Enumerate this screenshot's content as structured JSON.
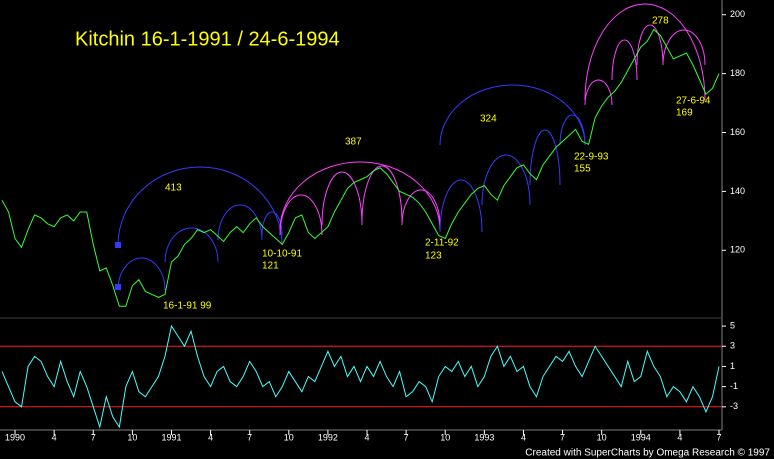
{
  "chart_data": [
    {
      "type": "line",
      "title": "Kitchin  16-1-1991 / 24-6-1994",
      "categories": [
        null,
        null,
        "1990",
        null,
        null,
        null,
        null,
        null,
        "4",
        null,
        null,
        null,
        null,
        null,
        "7",
        null,
        null,
        null,
        null,
        null,
        "10",
        null,
        null,
        null,
        null,
        null,
        "1991",
        null,
        null,
        null,
        null,
        null,
        "4",
        null,
        null,
        null,
        null,
        null,
        "7",
        null,
        null,
        null,
        null,
        null,
        "10",
        null,
        null,
        null,
        null,
        null,
        "1992",
        null,
        null,
        null,
        null,
        null,
        "4",
        null,
        null,
        null,
        null,
        null,
        "7",
        null,
        null,
        null,
        null,
        null,
        "10",
        null,
        null,
        null,
        null,
        null,
        "1993",
        null,
        null,
        null,
        null,
        null,
        "4",
        null,
        null,
        null,
        null,
        null,
        "7",
        null,
        null,
        null,
        null,
        null,
        "10",
        null,
        null,
        null,
        null,
        null,
        "1994",
        null,
        null,
        null,
        null,
        null,
        "4",
        null,
        null,
        null,
        null,
        null,
        "7"
      ],
      "values": [
        137,
        133,
        124,
        121,
        127,
        132,
        131,
        129,
        128,
        131,
        132,
        130,
        133,
        133,
        122,
        113,
        114,
        108,
        101,
        101,
        108,
        110,
        106,
        105,
        104,
        105,
        116,
        118,
        122,
        124,
        127,
        126,
        127,
        125,
        123,
        126,
        128,
        126,
        129,
        131,
        128,
        126,
        124,
        122,
        126,
        131,
        132,
        126,
        124,
        126,
        128,
        133,
        137,
        141,
        143,
        144,
        145,
        147,
        148,
        146,
        143,
        140,
        139,
        138,
        136,
        133,
        129,
        125,
        124,
        129,
        133,
        136,
        139,
        141,
        142,
        139,
        137,
        142,
        145,
        148,
        149,
        146,
        144,
        149,
        152,
        155,
        157,
        159,
        161,
        157,
        156,
        165,
        169,
        172,
        174,
        177,
        181,
        185,
        189,
        191,
        195,
        193,
        189,
        185,
        186,
        187,
        183,
        178,
        173,
        175,
        180
      ],
      "color": "#33ff33",
      "ylim": [
        97,
        205
      ],
      "yticks": [
        120,
        140,
        160,
        180,
        200
      ],
      "annotations": [
        "413",
        "387",
        "324",
        "278",
        "16-1-91   99",
        "10-10-91",
        "121",
        "2-11-92",
        "123",
        "22-9-93",
        "155",
        "27-6-94",
        "169"
      ],
      "credit": "Created with SuperCharts by Omega Research © 1997"
    },
    {
      "type": "line",
      "values": [
        0.5,
        -1,
        -2.5,
        -3,
        1,
        2,
        1.5,
        0,
        -1,
        1.5,
        -0.5,
        -2,
        0.5,
        -1,
        -3,
        -5,
        -2,
        -4,
        -5,
        -1,
        0.5,
        -1.5,
        -2,
        -1,
        0,
        2,
        5,
        4,
        3,
        4.5,
        2,
        0,
        -1,
        0.5,
        1,
        -0.5,
        -1,
        0,
        1.5,
        0.5,
        -1,
        -0.5,
        -2,
        -1,
        0.5,
        -0.5,
        -1.5,
        0,
        -0.5,
        1,
        2.5,
        1,
        2,
        0,
        1,
        -0.5,
        1,
        0,
        1.5,
        0,
        -1,
        0.5,
        -2,
        -1.5,
        -0.5,
        -1,
        -2.5,
        0,
        1,
        0.5,
        1.5,
        0,
        1,
        -1,
        0,
        2,
        3,
        1,
        2,
        0.5,
        1,
        -1,
        -2,
        0,
        1,
        2,
        1.5,
        2.5,
        1,
        0,
        1.5,
        3,
        2,
        1,
        0,
        -1,
        1.5,
        -0.5,
        0,
        2.5,
        1,
        0,
        -2,
        -1,
        -1.5,
        -2.5,
        -1,
        -2,
        -3.5,
        -2,
        1
      ],
      "color": "#44ffff",
      "ylim": [
        -5.1,
        5.8
      ],
      "yticks": [
        5,
        3,
        1,
        -1,
        -3
      ],
      "ref_lines": [
        3,
        -3
      ],
      "ref_color": "#ff2020"
    }
  ]
}
